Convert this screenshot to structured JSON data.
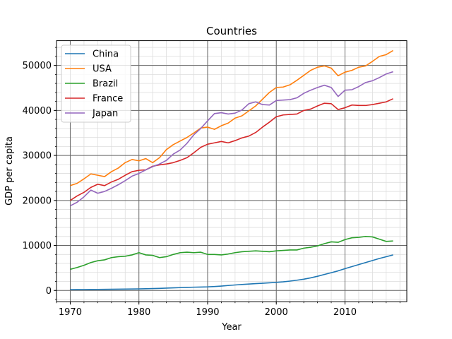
{
  "chart_data": {
    "type": "line",
    "title": "Countries",
    "xlabel": "Year",
    "ylabel": "GDP per capita",
    "xlim": [
      1968,
      2019
    ],
    "ylim": [
      -2500,
      55500
    ],
    "x_ticks": [
      1970,
      1980,
      1990,
      2000,
      2010
    ],
    "y_ticks": [
      0,
      10000,
      20000,
      30000,
      40000,
      50000
    ],
    "x_minor_step": 2,
    "y_minor_step": 2000,
    "grid": {
      "major": true,
      "minor": true
    },
    "legend": "top-left",
    "x": [
      1970,
      1971,
      1972,
      1973,
      1974,
      1975,
      1976,
      1977,
      1978,
      1979,
      1980,
      1981,
      1982,
      1983,
      1984,
      1985,
      1986,
      1987,
      1988,
      1989,
      1990,
      1991,
      1992,
      1993,
      1994,
      1995,
      1996,
      1997,
      1998,
      1999,
      2000,
      2001,
      2002,
      2003,
      2004,
      2005,
      2006,
      2007,
      2008,
      2009,
      2010,
      2011,
      2012,
      2013,
      2014,
      2015,
      2016,
      2017
    ],
    "series": [
      {
        "name": "China",
        "color": "#1f77b4",
        "values": [
          200,
          210,
          220,
          230,
          240,
          250,
          260,
          280,
          300,
          320,
          350,
          380,
          420,
          470,
          520,
          580,
          630,
          680,
          730,
          760,
          800,
          880,
          980,
          1100,
          1220,
          1320,
          1420,
          1520,
          1600,
          1700,
          1800,
          1920,
          2080,
          2280,
          2500,
          2800,
          3150,
          3550,
          3950,
          4350,
          4850,
          5300,
          5750,
          6200,
          6650,
          7100,
          7500,
          7900
        ]
      },
      {
        "name": "USA",
        "color": "#ff7f0e",
        "values": [
          23300,
          23800,
          24800,
          25900,
          25600,
          25300,
          26400,
          27200,
          28400,
          29100,
          28800,
          29300,
          28400,
          29500,
          31300,
          32400,
          33200,
          34000,
          35000,
          36100,
          36300,
          35800,
          36600,
          37200,
          38300,
          38800,
          39900,
          41000,
          42500,
          44000,
          45100,
          45200,
          45700,
          46700,
          47800,
          48900,
          49600,
          49900,
          49400,
          47700,
          48500,
          48900,
          49600,
          49900,
          50900,
          52000,
          52400,
          53300
        ]
      },
      {
        "name": "Brazil",
        "color": "#2ca02c",
        "values": [
          4700,
          5100,
          5600,
          6200,
          6600,
          6800,
          7300,
          7500,
          7600,
          7900,
          8400,
          7900,
          7800,
          7300,
          7500,
          8000,
          8400,
          8500,
          8400,
          8500,
          8000,
          8000,
          7900,
          8100,
          8400,
          8600,
          8700,
          8800,
          8700,
          8600,
          8800,
          8900,
          9000,
          9000,
          9400,
          9600,
          9900,
          10400,
          10800,
          10700,
          11300,
          11700,
          11800,
          12000,
          11900,
          11400,
          10900,
          11000
        ]
      },
      {
        "name": "France",
        "color": "#d62728",
        "values": [
          20000,
          21000,
          21800,
          22900,
          23600,
          23300,
          24100,
          24700,
          25600,
          26400,
          26700,
          26800,
          27600,
          27900,
          28100,
          28400,
          28900,
          29500,
          30600,
          31800,
          32500,
          32800,
          33100,
          32800,
          33300,
          33900,
          34300,
          35100,
          36300,
          37400,
          38600,
          39000,
          39100,
          39200,
          40000,
          40300,
          41000,
          41600,
          41500,
          40200,
          40600,
          41200,
          41100,
          41100,
          41300,
          41600,
          41900,
          42600
        ]
      },
      {
        "name": "Japan",
        "color": "#9467bd",
        "values": [
          18800,
          19600,
          20800,
          22300,
          21600,
          22000,
          22700,
          23500,
          24400,
          25400,
          26000,
          26800,
          27500,
          28100,
          28900,
          30300,
          31200,
          32700,
          34600,
          36000,
          37700,
          39300,
          39500,
          39200,
          39400,
          40100,
          41500,
          41900,
          41300,
          41200,
          42200,
          42300,
          42400,
          42800,
          43800,
          44500,
          45100,
          45600,
          45100,
          43100,
          44500,
          44600,
          45300,
          46200,
          46600,
          47300,
          48100,
          48600
        ]
      }
    ]
  }
}
